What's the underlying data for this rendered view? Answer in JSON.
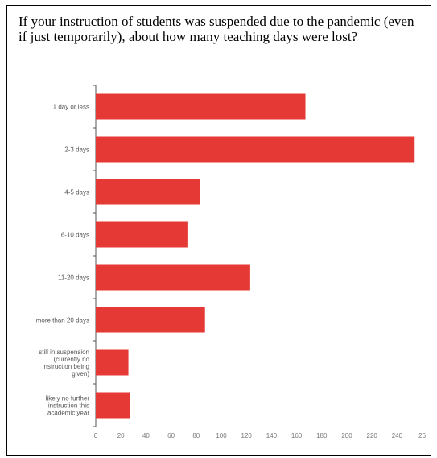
{
  "question": "If your instruction of students was suspended due to the pandemic (even if just temporarily), about how many teaching days were lost?",
  "colors": {
    "bar": "#e53935",
    "axis": "#555555"
  },
  "chart_data": {
    "type": "bar",
    "orientation": "horizontal",
    "categories": [
      [
        "1 day or less"
      ],
      [
        "2-3 days"
      ],
      [
        "4-5 days"
      ],
      [
        "6-10 days"
      ],
      [
        "11-20 days"
      ],
      [
        "more than 20 days"
      ],
      [
        "still in suspension",
        "(currently no",
        "instruction being",
        "given)"
      ],
      [
        "likely no further",
        "instruction this",
        "academic year"
      ]
    ],
    "values": [
      167,
      254,
      83,
      73,
      123,
      87,
      26,
      27
    ],
    "xlim": [
      0,
      260
    ],
    "xticks": [
      "0",
      "20",
      "40",
      "60",
      "80",
      "100",
      "120",
      "140",
      "160",
      "180",
      "200",
      "220",
      "240",
      "26"
    ],
    "grid": false,
    "legend": "none"
  }
}
